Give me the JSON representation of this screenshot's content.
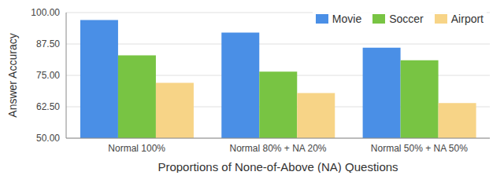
{
  "chart_data": {
    "type": "bar",
    "x_label": "Proportions of None-of-Above (NA) Questions",
    "y_label": "Answer Accuracy",
    "categories": [
      "Normal 100%",
      "Normal 80% + NA 20%",
      "Normal 50% + NA 50%"
    ],
    "series": [
      {
        "name": "Movie",
        "color": "#4a8fe6",
        "values": [
          97,
          92,
          86
        ]
      },
      {
        "name": "Soccer",
        "color": "#78c443",
        "values": [
          83,
          76.5,
          81
        ]
      },
      {
        "name": "Airport",
        "color": "#f7d487",
        "values": [
          72,
          68,
          64
        ]
      }
    ],
    "ylim": [
      50,
      100
    ],
    "yticks": [
      {
        "value": 50,
        "label": "50.00"
      },
      {
        "value": 62.5,
        "label": "62.50"
      },
      {
        "value": 75,
        "label": "75.00"
      },
      {
        "value": 87.5,
        "label": "87.50"
      },
      {
        "value": 100,
        "label": "100.00"
      }
    ],
    "grid": true,
    "legend": "top-right"
  }
}
